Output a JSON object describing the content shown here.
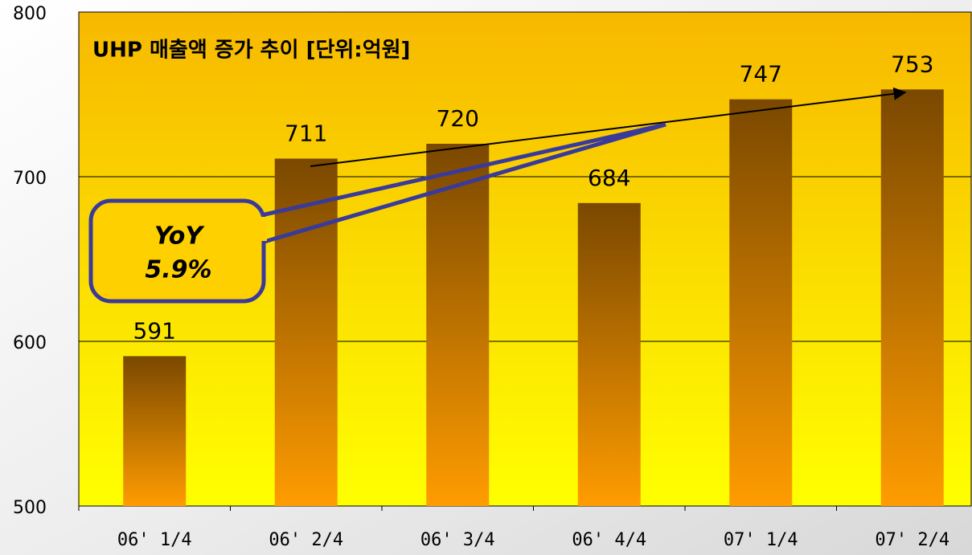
{
  "chart_data": {
    "type": "bar",
    "title": "UHP 매출액 증가 추이 [단위:억원]",
    "categories": [
      "06' 1/4",
      "06' 2/4",
      "06' 3/4",
      "06' 4/4",
      "07' 1/4",
      "07' 2/4"
    ],
    "values": [
      591,
      711,
      720,
      684,
      747,
      753
    ],
    "ylim": [
      500,
      800
    ],
    "yticks": [
      500,
      600,
      700,
      800
    ],
    "grid": true,
    "annotation": [
      "YoY",
      "5.9%"
    ]
  }
}
